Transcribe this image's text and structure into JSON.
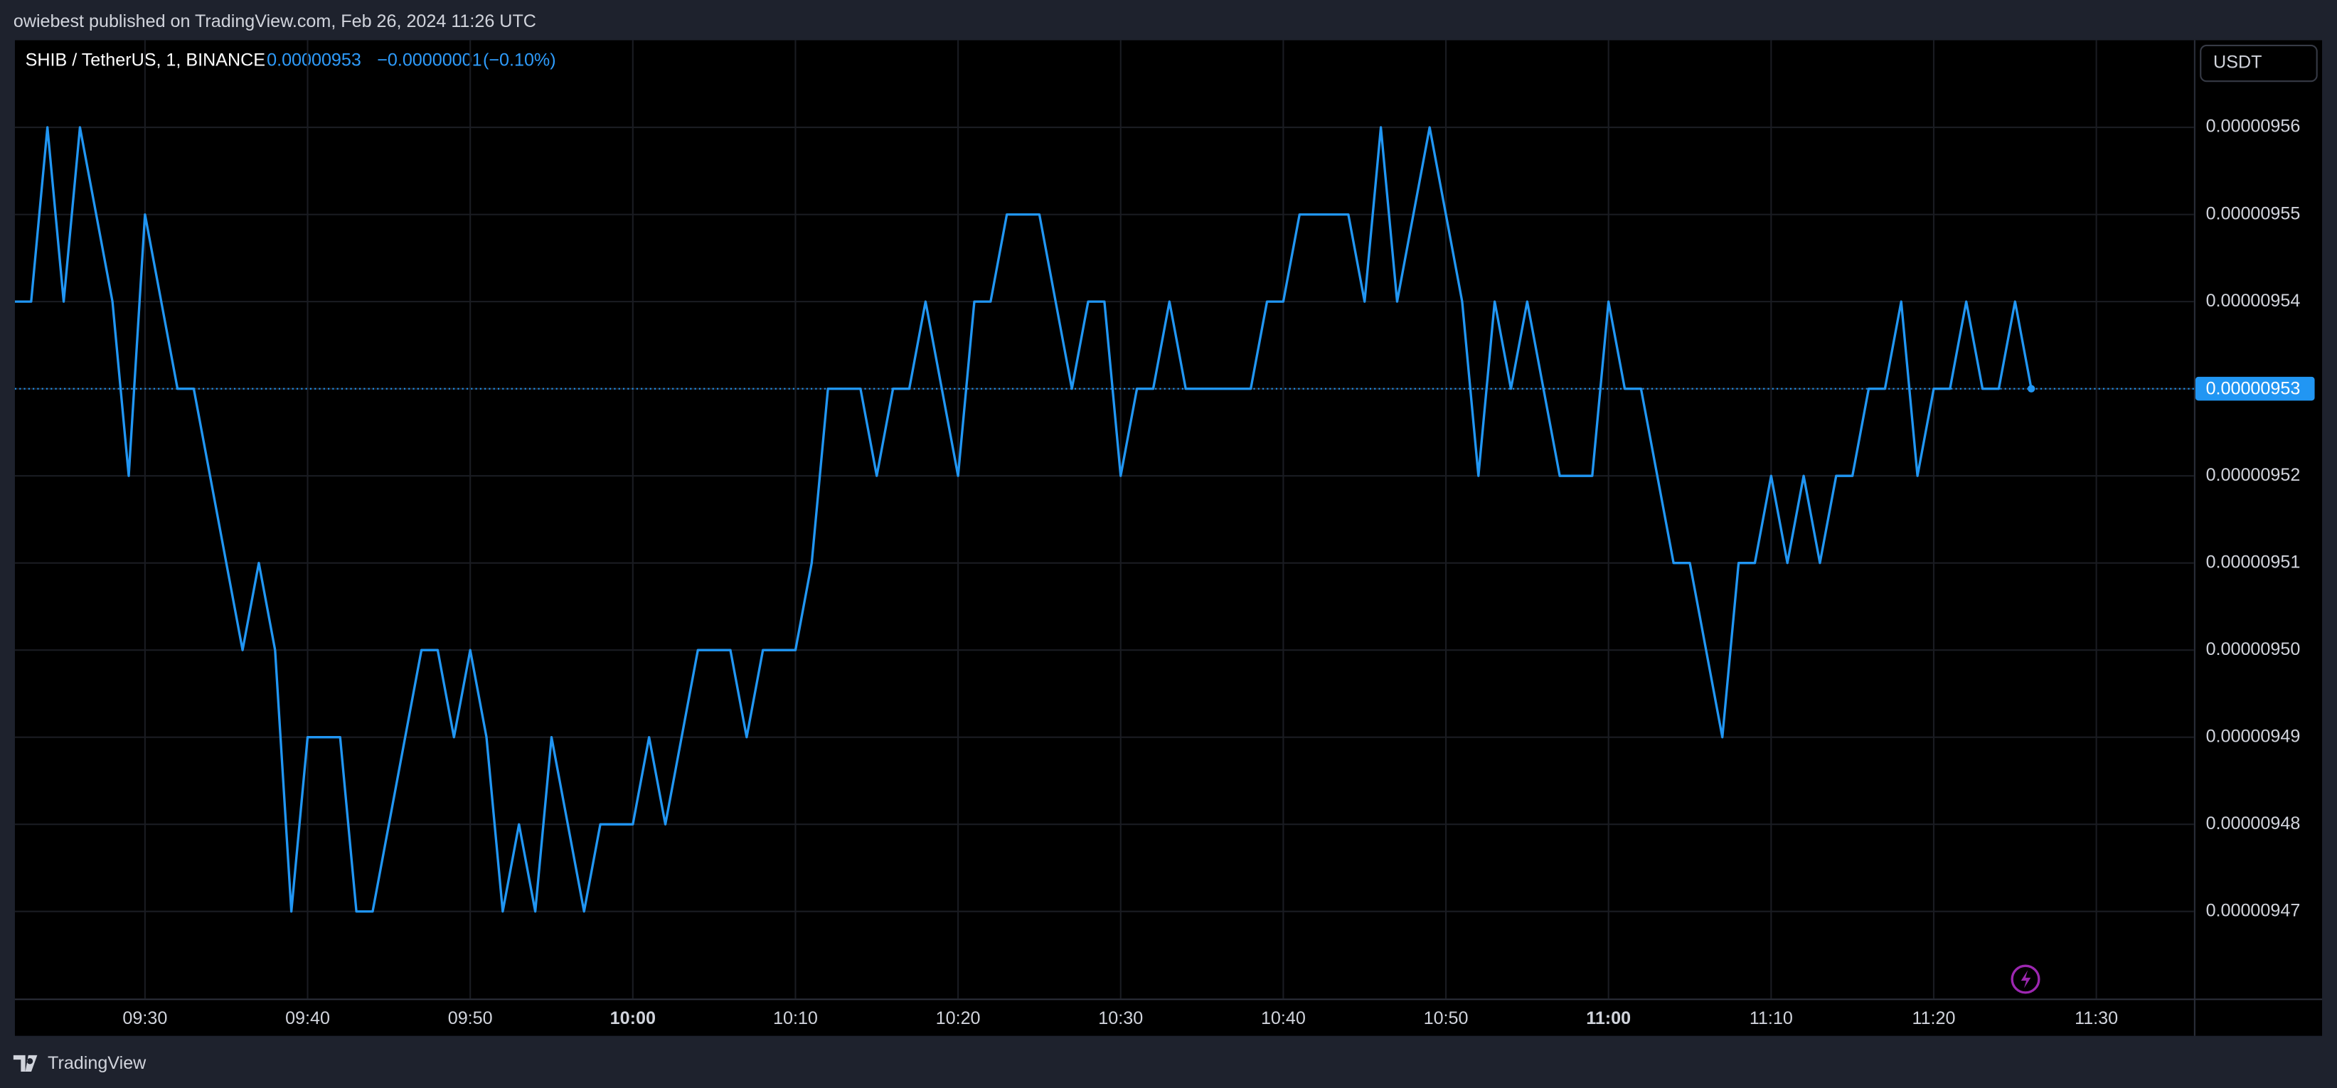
{
  "header": {
    "publisher": "owiebest published on TradingView.com, Feb 26, 2024 11:26 UTC"
  },
  "footer": {
    "brand": "TradingView"
  },
  "chart_data": {
    "type": "line",
    "title": "SHIB / TetherUS, 1, BINANCE",
    "last_price": "0.00000953",
    "change": "−0.00000001",
    "change_percent": "(−0.10%)",
    "currency": "USDT",
    "color": "#2196f3",
    "grid": true,
    "x": [
      "09:22",
      "09:23",
      "09:24",
      "09:25",
      "09:26",
      "09:27",
      "09:28",
      "09:29",
      "09:30",
      "09:31",
      "09:32",
      "09:33",
      "09:34",
      "09:35",
      "09:36",
      "09:37",
      "09:38",
      "09:39",
      "09:40",
      "09:41",
      "09:42",
      "09:43",
      "09:44",
      "09:45",
      "09:46",
      "09:47",
      "09:48",
      "09:49",
      "09:50",
      "09:51",
      "09:52",
      "09:53",
      "09:54",
      "09:55",
      "09:56",
      "09:57",
      "09:58",
      "09:59",
      "10:00",
      "10:01",
      "10:02",
      "10:03",
      "10:04",
      "10:05",
      "10:06",
      "10:07",
      "10:08",
      "10:09",
      "10:10",
      "10:11",
      "10:12",
      "10:13",
      "10:14",
      "10:15",
      "10:16",
      "10:17",
      "10:18",
      "10:19",
      "10:20",
      "10:21",
      "10:22",
      "10:23",
      "10:24",
      "10:25",
      "10:26",
      "10:27",
      "10:28",
      "10:29",
      "10:30",
      "10:31",
      "10:32",
      "10:33",
      "10:34",
      "10:35",
      "10:36",
      "10:37",
      "10:38",
      "10:39",
      "10:40",
      "10:41",
      "10:42",
      "10:43",
      "10:44",
      "10:45",
      "10:46",
      "10:47",
      "10:48",
      "10:49",
      "10:50",
      "10:51",
      "10:52",
      "10:53",
      "10:54",
      "10:55",
      "10:56",
      "10:57",
      "10:58",
      "10:59",
      "11:00",
      "11:01",
      "11:02",
      "11:03",
      "11:04",
      "11:05",
      "11:06",
      "11:07",
      "11:08",
      "11:09",
      "11:10",
      "11:11",
      "11:12",
      "11:13",
      "11:14",
      "11:15",
      "11:16",
      "11:17",
      "11:18",
      "11:19",
      "11:20",
      "11:21",
      "11:22",
      "11:23",
      "11:24",
      "11:25",
      "11:26"
    ],
    "values": [
      9.54e-06,
      9.54e-06,
      9.56e-06,
      9.54e-06,
      9.56e-06,
      9.55e-06,
      9.54e-06,
      9.52e-06,
      9.55e-06,
      9.54e-06,
      9.53e-06,
      9.53e-06,
      9.52e-06,
      9.51e-06,
      9.5e-06,
      9.51e-06,
      9.5e-06,
      9.47e-06,
      9.49e-06,
      9.49e-06,
      9.49e-06,
      9.47e-06,
      9.47e-06,
      9.48e-06,
      9.49e-06,
      9.5e-06,
      9.5e-06,
      9.49e-06,
      9.5e-06,
      9.49e-06,
      9.47e-06,
      9.48e-06,
      9.47e-06,
      9.49e-06,
      9.48e-06,
      9.47e-06,
      9.48e-06,
      9.48e-06,
      9.48e-06,
      9.49e-06,
      9.48e-06,
      9.49e-06,
      9.5e-06,
      9.5e-06,
      9.5e-06,
      9.49e-06,
      9.5e-06,
      9.5e-06,
      9.5e-06,
      9.51e-06,
      9.53e-06,
      9.53e-06,
      9.53e-06,
      9.52e-06,
      9.53e-06,
      9.53e-06,
      9.54e-06,
      9.53e-06,
      9.52e-06,
      9.54e-06,
      9.54e-06,
      9.55e-06,
      9.55e-06,
      9.55e-06,
      9.54e-06,
      9.53e-06,
      9.54e-06,
      9.54e-06,
      9.52e-06,
      9.53e-06,
      9.53e-06,
      9.54e-06,
      9.53e-06,
      9.53e-06,
      9.53e-06,
      9.53e-06,
      9.53e-06,
      9.54e-06,
      9.54e-06,
      9.55e-06,
      9.55e-06,
      9.55e-06,
      9.55e-06,
      9.54e-06,
      9.56e-06,
      9.54e-06,
      9.55e-06,
      9.56e-06,
      9.55e-06,
      9.54e-06,
      9.52e-06,
      9.54e-06,
      9.53e-06,
      9.54e-06,
      9.53e-06,
      9.52e-06,
      9.52e-06,
      9.52e-06,
      9.54e-06,
      9.53e-06,
      9.53e-06,
      9.52e-06,
      9.51e-06,
      9.51e-06,
      9.5e-06,
      9.49e-06,
      9.51e-06,
      9.51e-06,
      9.52e-06,
      9.51e-06,
      9.52e-06,
      9.51e-06,
      9.52e-06,
      9.52e-06,
      9.53e-06,
      9.53e-06,
      9.54e-06,
      9.52e-06,
      9.53e-06,
      9.53e-06,
      9.54e-06,
      9.53e-06,
      9.53e-06,
      9.54e-06,
      9.53e-06
    ],
    "xlim": [
      "09:22",
      "11:36"
    ],
    "xticks": [
      "09:30",
      "09:40",
      "09:50",
      "10:00",
      "10:10",
      "10:20",
      "10:30",
      "10:40",
      "10:50",
      "11:00",
      "11:10",
      "11:20",
      "11:30"
    ],
    "ylim": [
      9.46e-06,
      9.57e-06
    ],
    "yticks": [
      9.47e-06,
      9.48e-06,
      9.49e-06,
      {
        "value": 9.5e-06,
        "label": "0.00000950"
      },
      9.51e-06,
      9.52e-06,
      9.53e-06,
      9.54e-06,
      9.55e-06,
      9.56e-06
    ]
  }
}
